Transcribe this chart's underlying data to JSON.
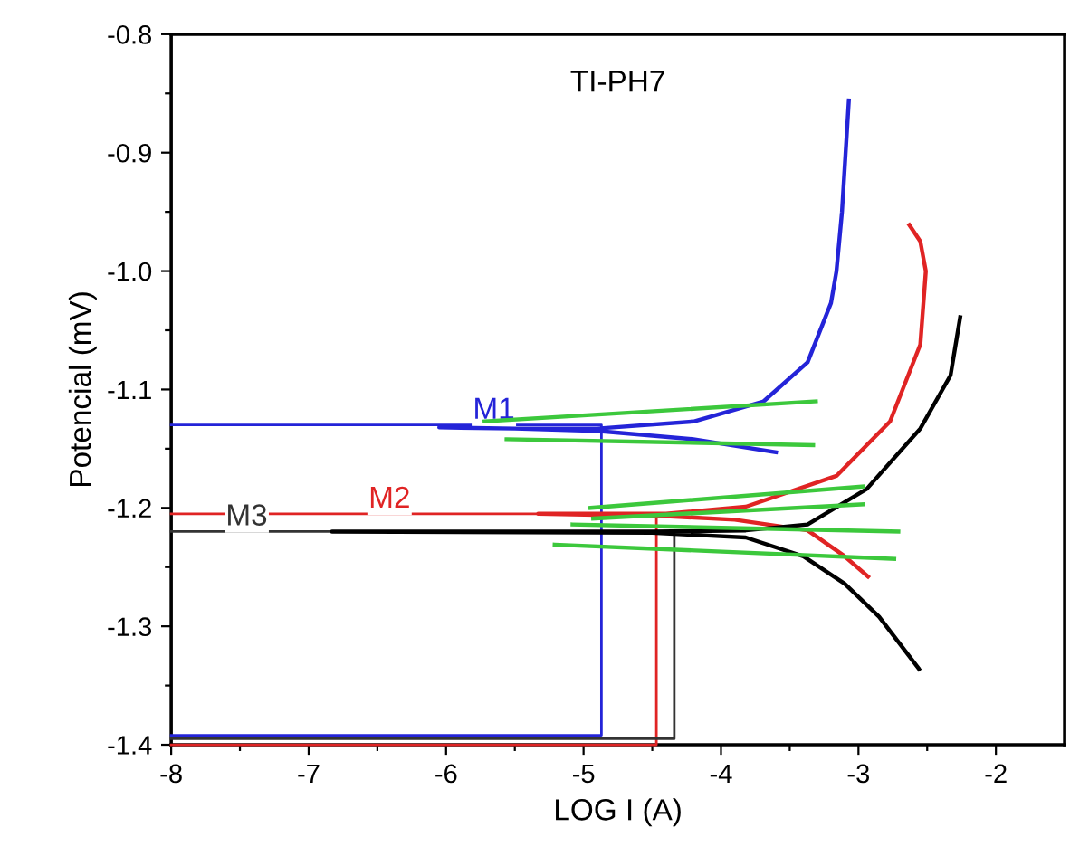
{
  "chart_data": {
    "type": "line",
    "title": "TI-PH7",
    "xlabel": "LOG I (A)",
    "ylabel": "Potencial (mV)",
    "xlim": [
      -8,
      -1.5
    ],
    "ylim": [
      -1.4,
      -0.8
    ],
    "xticks": [
      -8,
      {
        "value": -7.5,
        "label": null
      },
      -7,
      {
        "value": -6.5,
        "label": null
      },
      -6,
      {
        "value": -5.5,
        "label": null
      },
      -5,
      {
        "value": -4.5,
        "label": null
      },
      -4,
      {
        "value": -3.5,
        "label": null
      },
      -3,
      {
        "value": -2.5,
        "label": null
      },
      -2
    ],
    "yticks": [
      {
        "value": -1.4,
        "label": "-1.4"
      },
      {
        "value": -1.35,
        "label": null
      },
      {
        "value": -1.3,
        "label": "-1.3"
      },
      {
        "value": -1.25,
        "label": null
      },
      {
        "value": -1.2,
        "label": "-1.2"
      },
      {
        "value": -1.15,
        "label": null
      },
      {
        "value": -1.1,
        "label": "-1.1"
      },
      {
        "value": -1.05,
        "label": null
      },
      {
        "value": -1.0,
        "label": "-1.0"
      },
      {
        "value": -0.95,
        "label": null
      },
      {
        "value": -0.9,
        "label": "-0.9"
      },
      {
        "value": -0.85,
        "label": null
      },
      {
        "value": -0.8,
        "label": "-0.8"
      }
    ],
    "grid": false,
    "legend": false,
    "marker": "none",
    "line_style": "solid",
    "series": [
      {
        "name": "M1",
        "color": "#2424d8",
        "x": [
          -8,
          -4.87,
          -4.87,
          -8
        ],
        "values": [
          -1.13,
          -1.13,
          -1.392,
          -1.392
        ]
      },
      {
        "name": "M2",
        "color": "#e02424",
        "x": [
          -8,
          -4.47,
          -4.47,
          -8
        ],
        "values": [
          -1.205,
          -1.205,
          -1.4,
          -1.4
        ]
      },
      {
        "name": "M3",
        "color": "#333333",
        "x": [
          -8,
          -4.34,
          -4.34,
          -8
        ],
        "values": [
          -1.22,
          -1.22,
          -1.395,
          -1.395
        ]
      },
      {
        "color": "#2424d8",
        "x": [
          -3.6,
          -4.2,
          -4.9,
          -5.5,
          -6.05,
          -5.5,
          -4.9,
          -4.2,
          -3.69,
          -3.37,
          -3.2,
          -3.16,
          -3.12,
          -3.07
        ],
        "values": [
          -1.153,
          -1.142,
          -1.135,
          -1.133,
          -1.132,
          -1.133,
          -1.133,
          -1.127,
          -1.11,
          -1.077,
          -1.027,
          -1.0,
          -0.95,
          -0.856
        ]
      },
      {
        "color": "#e02424",
        "x": [
          -2.93,
          -3.11,
          -3.37,
          -3.9,
          -4.4,
          -5.33,
          -4.4,
          -3.82,
          -3.16,
          -2.77,
          -2.55,
          -2.51,
          -2.55,
          -2.63
        ],
        "values": [
          -1.258,
          -1.24,
          -1.219,
          -1.21,
          -1.207,
          -1.205,
          -1.205,
          -1.199,
          -1.173,
          -1.127,
          -1.062,
          -1.0,
          -0.975,
          -0.961
        ]
      },
      {
        "color": "#000000",
        "x": [
          -2.56,
          -2.85,
          -3.1,
          -3.4,
          -3.82,
          -4.5,
          -6.83,
          -4.5,
          -3.82,
          -3.37,
          -2.94,
          -2.55,
          -2.33,
          -2.26
        ],
        "values": [
          -1.336,
          -1.292,
          -1.264,
          -1.241,
          -1.225,
          -1.221,
          -1.22,
          -1.22,
          -1.219,
          -1.214,
          -1.184,
          -1.133,
          -1.088,
          -1.039
        ]
      },
      {
        "color": "#3cc83c",
        "x": [
          -5.72,
          -3.31
        ],
        "values": [
          -1.127,
          -1.11
        ]
      },
      {
        "color": "#3cc83c",
        "x": [
          -5.56,
          -3.33
        ],
        "values": [
          -1.142,
          -1.147
        ]
      },
      {
        "color": "#3cc83c",
        "x": [
          -4.95,
          -2.97
        ],
        "values": [
          -1.2,
          -1.182
        ]
      },
      {
        "color": "#3cc83c",
        "x": [
          -4.93,
          -2.97
        ],
        "values": [
          -1.209,
          -1.197
        ]
      },
      {
        "color": "#3cc83c",
        "x": [
          -5.08,
          -2.71
        ],
        "values": [
          -1.214,
          -1.22
        ]
      },
      {
        "color": "#3cc83c",
        "x": [
          -5.21,
          -2.74
        ],
        "values": [
          -1.231,
          -1.243
        ]
      }
    ]
  }
}
